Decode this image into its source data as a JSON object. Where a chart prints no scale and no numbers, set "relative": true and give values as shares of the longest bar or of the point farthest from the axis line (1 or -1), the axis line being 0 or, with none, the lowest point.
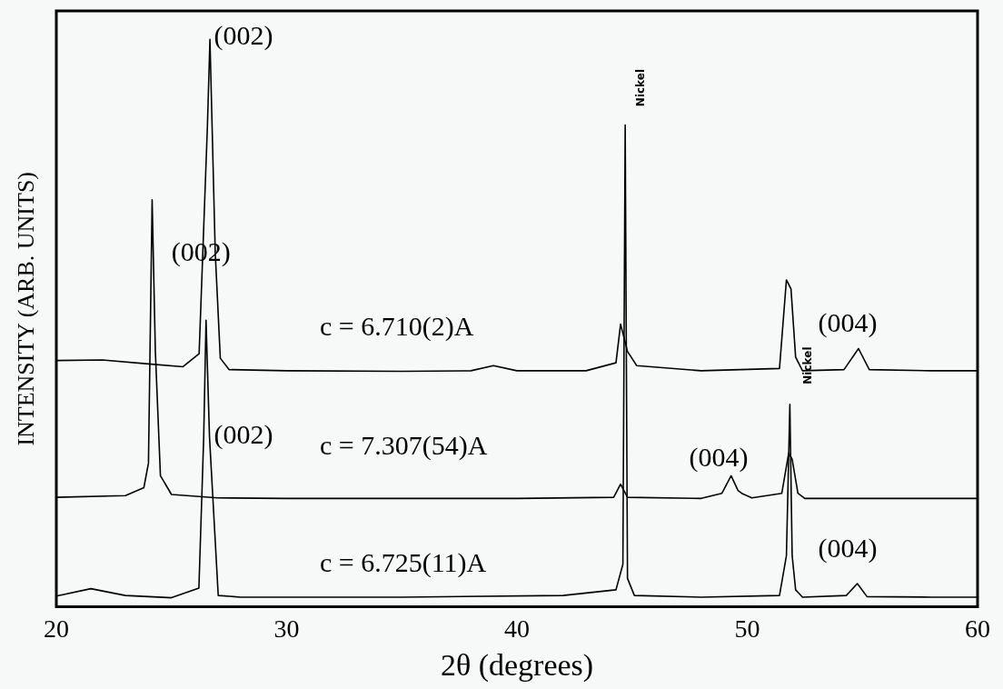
{
  "chart_data": {
    "type": "line",
    "relative": true,
    "xlabel": "2θ (degrees)",
    "ylabel": "INTENSITY (ARB. UNITS)",
    "xlim": [
      20,
      60
    ],
    "xticks": [
      20,
      30,
      40,
      50,
      60
    ],
    "grid": false,
    "legend": false,
    "marker": "none",
    "line_style": "solid",
    "tick_labels": "x",
    "series": [
      {
        "color": "#000000",
        "x": [
          20,
          22,
          24,
          25.5,
          26.2,
          26.56,
          26.67,
          26.9,
          27.12,
          27.5,
          30,
          35,
          38,
          38.98,
          40,
          43,
          44.3,
          44.5,
          44.8,
          45.2,
          48,
          51.4,
          51.7,
          51.9,
          52.1,
          52.4,
          54.2,
          54.83,
          55.3,
          58,
          60
        ],
        "values": [
          0.434,
          0.435,
          0.428,
          0.423,
          0.446,
          0.847,
          1.0,
          0.624,
          0.438,
          0.418,
          0.416,
          0.415,
          0.416,
          0.425,
          0.416,
          0.416,
          0.43,
          0.498,
          0.45,
          0.425,
          0.416,
          0.42,
          0.576,
          0.56,
          0.44,
          0.416,
          0.418,
          0.455,
          0.418,
          0.416,
          0.416
        ]
      },
      {
        "color": "#000000",
        "x": [
          20,
          23,
          23.8,
          24.0,
          24.16,
          24.3,
          24.52,
          25,
          27,
          30,
          40,
          44.2,
          44.5,
          44.8,
          48,
          48.9,
          49.3,
          49.6,
          49.8,
          50.2,
          51.5,
          51.8,
          51.95,
          52.2,
          52.5,
          55,
          60
        ],
        "values": [
          0.193,
          0.196,
          0.21,
          0.253,
          0.717,
          0.45,
          0.231,
          0.198,
          0.192,
          0.191,
          0.191,
          0.193,
          0.216,
          0.193,
          0.191,
          0.2,
          0.231,
          0.205,
          0.199,
          0.192,
          0.2,
          0.271,
          0.26,
          0.2,
          0.191,
          0.191,
          0.191
        ]
      },
      {
        "color": "#000000",
        "x": [
          20,
          21.5,
          23,
          25,
          26.19,
          26.4,
          26.5,
          26.65,
          27.03,
          28,
          35,
          42,
          44.3,
          44.6,
          44.7,
          44.8,
          45.1,
          48,
          51.4,
          51.7,
          51.85,
          51.95,
          52.1,
          52.4,
          54.3,
          54.78,
          55.2,
          58,
          60
        ],
        "values": [
          0.019,
          0.032,
          0.02,
          0.016,
          0.033,
          0.3,
          0.505,
          0.3,
          0.02,
          0.017,
          0.017,
          0.02,
          0.03,
          0.075,
          0.849,
          0.05,
          0.02,
          0.017,
          0.02,
          0.09,
          0.357,
          0.09,
          0.03,
          0.017,
          0.02,
          0.041,
          0.018,
          0.017,
          0.017
        ]
      }
    ],
    "annotations": [
      "(002)",
      "(002)",
      "(002)",
      "c = 6.710(2)A",
      "c = 7.307(54)A",
      "c = 6.725(11)A",
      "(004)",
      "(004)",
      "(004)",
      "Nickel",
      "Nickel"
    ]
  }
}
